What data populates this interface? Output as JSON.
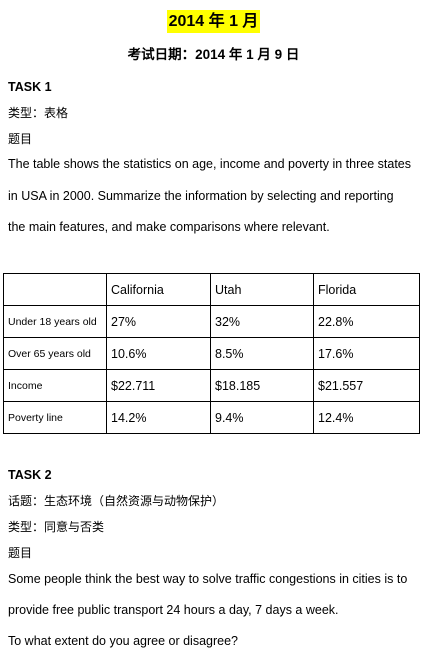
{
  "header": {
    "title": "2014 年 1 月",
    "exam_date": "考试日期：2014 年 1 月 9 日"
  },
  "task1": {
    "heading": "TASK 1",
    "type_line": "类型：表格",
    "prompt_label": "题目",
    "lines": [
      "The table shows the statistics on age, income and poverty in three states",
      "in USA in 2000. Summarize the information by selecting and reporting",
      "the main features, and make comparisons where relevant."
    ],
    "table": {
      "columns": [
        "",
        "California",
        "Utah",
        "Florida"
      ],
      "rows": [
        {
          "label": "Under 18 years old",
          "values": [
            "27%",
            "32%",
            "22.8%"
          ]
        },
        {
          "label": "Over 65 years old",
          "values": [
            "10.6%",
            "8.5%",
            "17.6%"
          ]
        },
        {
          "label": "Income",
          "values": [
            "$22.711",
            "$18.185",
            "$21.557"
          ]
        },
        {
          "label": "Poverty line",
          "values": [
            "14.2%",
            "9.4%",
            "12.4%"
          ]
        }
      ]
    }
  },
  "task2": {
    "heading": "TASK 2",
    "topic_line": "话题：生态环境（自然资源与动物保护）",
    "type_line": "类型：同意与否类",
    "prompt_label": "题目",
    "lines": [
      "Some people think the best way to solve traffic congestions in cities is to",
      "provide free public transport 24 hours a day, 7 days a week.",
      "To what extent do you agree or disagree?"
    ]
  }
}
